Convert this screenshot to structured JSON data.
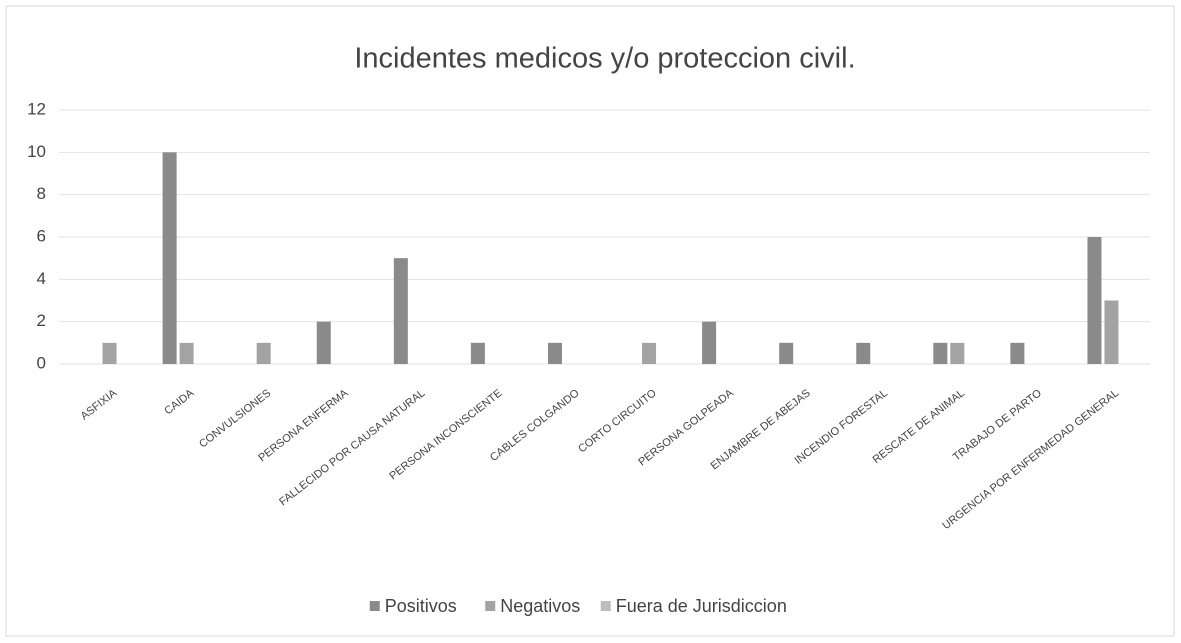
{
  "chart_data": {
    "type": "bar",
    "title": "Incidentes medicos y/o proteccion civil.",
    "categories": [
      "ASFIXIA",
      "CAIDA",
      "CONVULSIONES",
      "PERSONA ENFERMA",
      "FALLECIDO POR CAUSA NATURAL",
      "PERSONA INCONSCIENTE",
      "CABLES COLGANDO",
      "CORTO CIRCUITO",
      "PERSONA GOLPEADA",
      "ENJAMBRE DE ABEJAS",
      "INCENDIO FORESTAL",
      "RESCATE DE ANIMAL",
      "TRABAJO DE PARTO",
      "URGENCIA POR ENFERMEDAD GENERAL"
    ],
    "series": [
      {
        "name": "Positivos",
        "color": "#8a8a8a",
        "values": [
          0,
          10,
          0,
          2,
          5,
          1,
          1,
          0,
          2,
          1,
          1,
          1,
          1,
          6
        ]
      },
      {
        "name": "Negativos",
        "color": "#a3a3a3",
        "values": [
          1,
          1,
          1,
          0,
          0,
          0,
          0,
          1,
          0,
          0,
          0,
          1,
          0,
          3
        ]
      },
      {
        "name": "Fuera de Jurisdiccion",
        "color": "#bdbdbd",
        "values": [
          0,
          0,
          0,
          0,
          0,
          0,
          0,
          0,
          0,
          0,
          0,
          0,
          0,
          0
        ]
      }
    ],
    "ylim": [
      0,
      12
    ],
    "yticks": [
      0,
      2,
      4,
      6,
      8,
      10,
      12
    ],
    "grid": true,
    "legend": "bottom"
  }
}
